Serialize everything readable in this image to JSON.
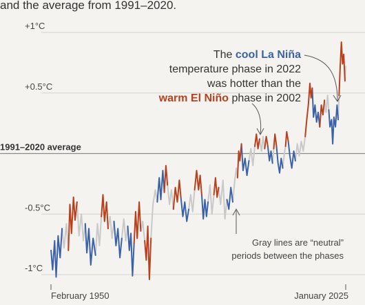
{
  "header": {
    "subtitle_fragment": "and the average from 1991–2020."
  },
  "chart_data": {
    "type": "line",
    "title": "",
    "xlabel": "",
    "ylabel": "",
    "x_range": [
      "1950-02",
      "2025-01"
    ],
    "xlim": [
      1950.08,
      2025.0
    ],
    "ylim": [
      -1.0,
      1.0
    ],
    "y_ticks": [
      {
        "value": 1.0,
        "label": "+1°C"
      },
      {
        "value": 0.5,
        "label": "+0.5°C"
      },
      {
        "value": 0.0,
        "label": "1991–2020 average"
      },
      {
        "value": -0.5,
        "label": "-0.5°C"
      },
      {
        "value": -1.0,
        "label": "-1°C"
      }
    ],
    "x_ticks": [
      {
        "value": 1950.08,
        "label": "February 1950"
      },
      {
        "value": 2025.0,
        "label": "January 2025"
      }
    ],
    "baseline_value": 0.0,
    "colors": {
      "la_nina": "#3b62a8",
      "el_nino": "#b8401d",
      "neutral": "#c9c9c9"
    },
    "segments": [
      {
        "phase": "la_nina",
        "points": [
          [
            1950.1,
            -0.8
          ],
          [
            1950.5,
            -0.96
          ],
          [
            1951.0,
            -0.72
          ],
          [
            1951.4,
            -1.02
          ],
          [
            1951.9,
            -0.68
          ],
          [
            1952.4,
            -0.86
          ],
          [
            1952.9,
            -0.62
          ]
        ]
      },
      {
        "phase": "neutral",
        "points": [
          [
            1952.9,
            -0.62
          ],
          [
            1953.4,
            -0.78
          ],
          [
            1954.0,
            -0.58
          ],
          [
            1954.5,
            -0.8
          ]
        ]
      },
      {
        "phase": "el_nino",
        "points": [
          [
            1954.5,
            -0.8
          ],
          [
            1954.9,
            -0.42
          ],
          [
            1955.3,
            -0.66
          ],
          [
            1955.8,
            -0.36
          ],
          [
            1956.2,
            -0.55
          ],
          [
            1956.7,
            -0.4
          ]
        ]
      },
      {
        "phase": "neutral",
        "points": [
          [
            1956.7,
            -0.4
          ],
          [
            1957.2,
            -0.68
          ],
          [
            1957.8,
            -0.5
          ],
          [
            1958.3,
            -0.72
          ],
          [
            1958.8,
            -0.58
          ]
        ]
      },
      {
        "phase": "la_nina",
        "points": [
          [
            1958.8,
            -0.58
          ],
          [
            1959.2,
            -0.82
          ],
          [
            1959.7,
            -0.62
          ],
          [
            1960.2,
            -0.92
          ],
          [
            1960.8,
            -0.7
          ],
          [
            1961.4,
            -0.84
          ]
        ]
      },
      {
        "phase": "neutral",
        "points": [
          [
            1961.4,
            -0.84
          ],
          [
            1961.9,
            -0.58
          ],
          [
            1962.4,
            -0.76
          ],
          [
            1962.9,
            -0.52
          ]
        ]
      },
      {
        "phase": "el_nino",
        "points": [
          [
            1962.9,
            -0.52
          ],
          [
            1963.3,
            -0.34
          ],
          [
            1963.7,
            -0.56
          ],
          [
            1964.2,
            -0.4
          ],
          [
            1964.6,
            -0.62
          ]
        ]
      },
      {
        "phase": "neutral",
        "points": [
          [
            1964.6,
            -0.62
          ],
          [
            1965.1,
            -0.52
          ],
          [
            1965.6,
            -0.7
          ],
          [
            1966.1,
            -0.56
          ]
        ]
      },
      {
        "phase": "la_nina",
        "points": [
          [
            1966.1,
            -0.56
          ],
          [
            1966.6,
            -0.76
          ],
          [
            1967.1,
            -0.62
          ],
          [
            1967.6,
            -0.86
          ],
          [
            1968.1,
            -0.7
          ]
        ]
      },
      {
        "phase": "neutral",
        "points": [
          [
            1968.1,
            -0.7
          ],
          [
            1968.6,
            -0.54
          ],
          [
            1969.1,
            -0.72
          ],
          [
            1969.6,
            -0.6
          ]
        ]
      },
      {
        "phase": "la_nina",
        "points": [
          [
            1969.6,
            -0.6
          ],
          [
            1970.0,
            -0.8
          ],
          [
            1970.4,
            -0.66
          ],
          [
            1970.8,
            -1.01
          ],
          [
            1971.2,
            -0.74
          ]
        ]
      },
      {
        "phase": "el_nino",
        "points": [
          [
            1971.2,
            -0.74
          ],
          [
            1971.6,
            -0.48
          ],
          [
            1972.0,
            -0.7
          ],
          [
            1972.5,
            -0.4
          ],
          [
            1972.9,
            -0.64
          ]
        ]
      },
      {
        "phase": "neutral",
        "points": [
          [
            1972.9,
            -0.64
          ],
          [
            1973.4,
            -0.56
          ],
          [
            1973.9,
            -0.72
          ]
        ]
      },
      {
        "phase": "el_nino",
        "points": [
          [
            1973.9,
            -0.72
          ],
          [
            1974.3,
            -0.88
          ],
          [
            1974.7,
            -0.6
          ],
          [
            1975.1,
            -1.04
          ],
          [
            1975.5,
            -0.7
          ]
        ]
      },
      {
        "phase": "neutral",
        "points": [
          [
            1975.5,
            -0.7
          ],
          [
            1976.0,
            -0.42
          ],
          [
            1976.6,
            -0.3
          ],
          [
            1977.1,
            -0.4
          ]
        ]
      },
      {
        "phase": "la_nina",
        "points": [
          [
            1977.1,
            -0.4
          ],
          [
            1977.6,
            -0.2
          ],
          [
            1978.0,
            -0.38
          ],
          [
            1978.5,
            -0.14
          ],
          [
            1978.9,
            -0.32
          ]
        ]
      },
      {
        "phase": "el_nino",
        "points": [
          [
            1978.9,
            -0.32
          ],
          [
            1979.3,
            -0.1
          ],
          [
            1979.7,
            -0.26
          ]
        ]
      },
      {
        "phase": "neutral",
        "points": [
          [
            1979.7,
            -0.26
          ],
          [
            1980.2,
            -0.42
          ],
          [
            1980.7,
            -0.3
          ],
          [
            1981.2,
            -0.46
          ]
        ]
      },
      {
        "phase": "el_nino",
        "points": [
          [
            1981.2,
            -0.46
          ],
          [
            1981.7,
            -0.28
          ],
          [
            1982.2,
            -0.4
          ],
          [
            1982.7,
            -0.22
          ],
          [
            1983.1,
            -0.36
          ]
        ]
      },
      {
        "phase": "la_nina",
        "points": [
          [
            1983.1,
            -0.36
          ],
          [
            1983.6,
            -0.52
          ],
          [
            1984.1,
            -0.4
          ],
          [
            1984.6,
            -0.56
          ],
          [
            1985.1,
            -0.46
          ]
        ]
      },
      {
        "phase": "neutral",
        "points": [
          [
            1985.1,
            -0.46
          ],
          [
            1985.6,
            -0.34
          ],
          [
            1986.1,
            -0.48
          ],
          [
            1986.6,
            -0.3
          ]
        ]
      },
      {
        "phase": "el_nino",
        "points": [
          [
            1986.6,
            -0.3
          ],
          [
            1987.1,
            -0.14
          ],
          [
            1987.6,
            -0.3
          ],
          [
            1988.0,
            -0.18
          ],
          [
            1988.4,
            -0.34
          ]
        ]
      },
      {
        "phase": "la_nina",
        "points": [
          [
            1988.4,
            -0.34
          ],
          [
            1988.8,
            -0.54
          ],
          [
            1989.2,
            -0.38
          ],
          [
            1989.6,
            -0.52
          ],
          [
            1990.0,
            -0.4
          ]
        ]
      },
      {
        "phase": "neutral",
        "points": [
          [
            1990.0,
            -0.4
          ],
          [
            1990.5,
            -0.26
          ],
          [
            1991.0,
            -0.5
          ],
          [
            1991.5,
            -0.34
          ]
        ]
      },
      {
        "phase": "el_nino",
        "points": [
          [
            1991.5,
            -0.34
          ],
          [
            1991.9,
            -0.2
          ],
          [
            1992.3,
            -0.36
          ],
          [
            1992.7,
            -0.28
          ]
        ]
      },
      {
        "phase": "neutral",
        "points": [
          [
            1992.7,
            -0.28
          ],
          [
            1993.2,
            -0.42
          ],
          [
            1993.8,
            -0.22
          ],
          [
            1994.3,
            -0.54
          ],
          [
            1994.8,
            -0.38
          ]
        ]
      },
      {
        "phase": "la_nina",
        "points": [
          [
            1994.8,
            -0.38
          ],
          [
            1995.3,
            -0.46
          ],
          [
            1995.8,
            -0.28
          ],
          [
            1996.3,
            -0.4
          ]
        ]
      },
      {
        "phase": "neutral",
        "points": [
          [
            1996.3,
            -0.4
          ],
          [
            1996.8,
            -0.22
          ],
          [
            1997.2,
            -0.12
          ],
          [
            1997.5,
            -0.2
          ]
        ]
      },
      {
        "phase": "el_nino",
        "points": [
          [
            1997.5,
            -0.2
          ],
          [
            1997.8,
            0.02
          ],
          [
            1998.1,
            -0.06
          ],
          [
            1998.5,
            0.08
          ]
        ]
      },
      {
        "phase": "la_nina",
        "points": [
          [
            1998.5,
            0.08
          ],
          [
            1998.9,
            -0.14
          ],
          [
            1999.4,
            -0.04
          ],
          [
            1999.9,
            -0.18
          ],
          [
            2000.4,
            -0.06
          ]
        ]
      },
      {
        "phase": "neutral",
        "points": [
          [
            2000.4,
            -0.06
          ],
          [
            2000.9,
            0.04
          ],
          [
            2001.4,
            -0.1
          ],
          [
            2001.9,
            0.06
          ]
        ]
      },
      {
        "phase": "el_nino",
        "points": [
          [
            2001.9,
            0.06
          ],
          [
            2002.3,
            0.16
          ],
          [
            2002.7,
            0.04
          ],
          [
            2003.1,
            0.12
          ]
        ]
      },
      {
        "phase": "neutral",
        "points": [
          [
            2003.1,
            0.12
          ],
          [
            2003.6,
            0.02
          ],
          [
            2004.0,
            0.14
          ],
          [
            2004.4,
            0.04
          ]
        ]
      },
      {
        "phase": "el_nino",
        "points": [
          [
            2004.4,
            0.04
          ],
          [
            2004.8,
            0.14
          ],
          [
            2005.2,
            0.06
          ]
        ]
      },
      {
        "phase": "la_nina",
        "points": [
          [
            2005.2,
            0.06
          ],
          [
            2005.6,
            -0.06
          ],
          [
            2006.0,
            0.02
          ],
          [
            2006.4,
            -0.08
          ]
        ]
      },
      {
        "phase": "neutral",
        "points": [
          [
            2006.4,
            -0.08
          ],
          [
            2006.7,
            0.04
          ]
        ]
      },
      {
        "phase": "el_nino",
        "points": [
          [
            2006.7,
            0.04
          ],
          [
            2007.0,
            0.16
          ],
          [
            2007.4,
            0.06
          ]
        ]
      },
      {
        "phase": "la_nina",
        "points": [
          [
            2007.4,
            0.06
          ],
          [
            2007.8,
            -0.08
          ],
          [
            2008.2,
            -0.16
          ],
          [
            2008.6,
            -0.04
          ],
          [
            2009.0,
            -0.12
          ]
        ]
      },
      {
        "phase": "neutral",
        "points": [
          [
            2009.0,
            -0.12
          ],
          [
            2009.4,
            0.0
          ],
          [
            2009.7,
            0.06
          ]
        ]
      },
      {
        "phase": "el_nino",
        "points": [
          [
            2009.7,
            0.06
          ],
          [
            2010.0,
            0.18
          ],
          [
            2010.4,
            0.1
          ]
        ]
      },
      {
        "phase": "la_nina",
        "points": [
          [
            2010.4,
            0.1
          ],
          [
            2010.8,
            -0.02
          ],
          [
            2011.3,
            -0.12
          ],
          [
            2011.8,
            0.02
          ],
          [
            2012.2,
            -0.06
          ]
        ]
      },
      {
        "phase": "neutral",
        "points": [
          [
            2012.2,
            -0.06
          ],
          [
            2012.7,
            0.08
          ],
          [
            2013.2,
            -0.02
          ],
          [
            2013.7,
            0.1
          ],
          [
            2014.2,
            0.02
          ],
          [
            2014.7,
            0.14
          ]
        ]
      },
      {
        "phase": "el_nino",
        "points": [
          [
            2014.7,
            0.14
          ],
          [
            2015.1,
            0.28
          ],
          [
            2015.5,
            0.4
          ],
          [
            2015.9,
            0.58
          ],
          [
            2016.2,
            0.46
          ],
          [
            2016.5,
            0.54
          ]
        ]
      },
      {
        "phase": "la_nina",
        "points": [
          [
            2016.5,
            0.54
          ],
          [
            2016.8,
            0.3
          ],
          [
            2017.2,
            0.4
          ],
          [
            2017.6,
            0.26
          ],
          [
            2018.0,
            0.34
          ],
          [
            2018.4,
            0.22
          ]
        ]
      },
      {
        "phase": "el_nino",
        "points": [
          [
            2018.4,
            0.22
          ],
          [
            2018.8,
            0.4
          ],
          [
            2019.2,
            0.32
          ],
          [
            2019.6,
            0.44
          ]
        ]
      },
      {
        "phase": "neutral",
        "points": [
          [
            2019.6,
            0.44
          ],
          [
            2020.0,
            0.34
          ],
          [
            2020.4,
            0.48
          ],
          [
            2020.7,
            0.36
          ]
        ]
      },
      {
        "phase": "la_nina",
        "points": [
          [
            2020.7,
            0.36
          ],
          [
            2021.0,
            0.22
          ],
          [
            2021.4,
            0.28
          ],
          [
            2021.7,
            0.08
          ],
          [
            2022.0,
            0.3
          ],
          [
            2022.4,
            0.22
          ],
          [
            2022.8,
            0.4
          ],
          [
            2023.1,
            0.28
          ]
        ]
      },
      {
        "phase": "neutral",
        "points": [
          [
            2023.1,
            0.28
          ],
          [
            2023.3,
            0.48
          ]
        ]
      },
      {
        "phase": "el_nino",
        "points": [
          [
            2023.3,
            0.48
          ],
          [
            2023.6,
            0.72
          ],
          [
            2023.9,
            0.92
          ],
          [
            2024.2,
            0.74
          ],
          [
            2024.5,
            0.82
          ],
          [
            2024.8,
            0.6
          ]
        ]
      },
      {
        "phase": "neutral",
        "points": [
          [
            2024.8,
            0.6
          ],
          [
            2025.0,
            0.72
          ]
        ]
      }
    ],
    "annotations": {
      "top": {
        "line1_pre": "The ",
        "line1_em": "cool La Niña",
        "line2": "temperature phase in 2022",
        "line3": "was hotter than the",
        "line4_em": "warm El Niño",
        "line4_post": " phase in 2002"
      },
      "bottom": {
        "line1": "Gray lines are “neutral”",
        "line2": "periods between the phases"
      }
    }
  }
}
